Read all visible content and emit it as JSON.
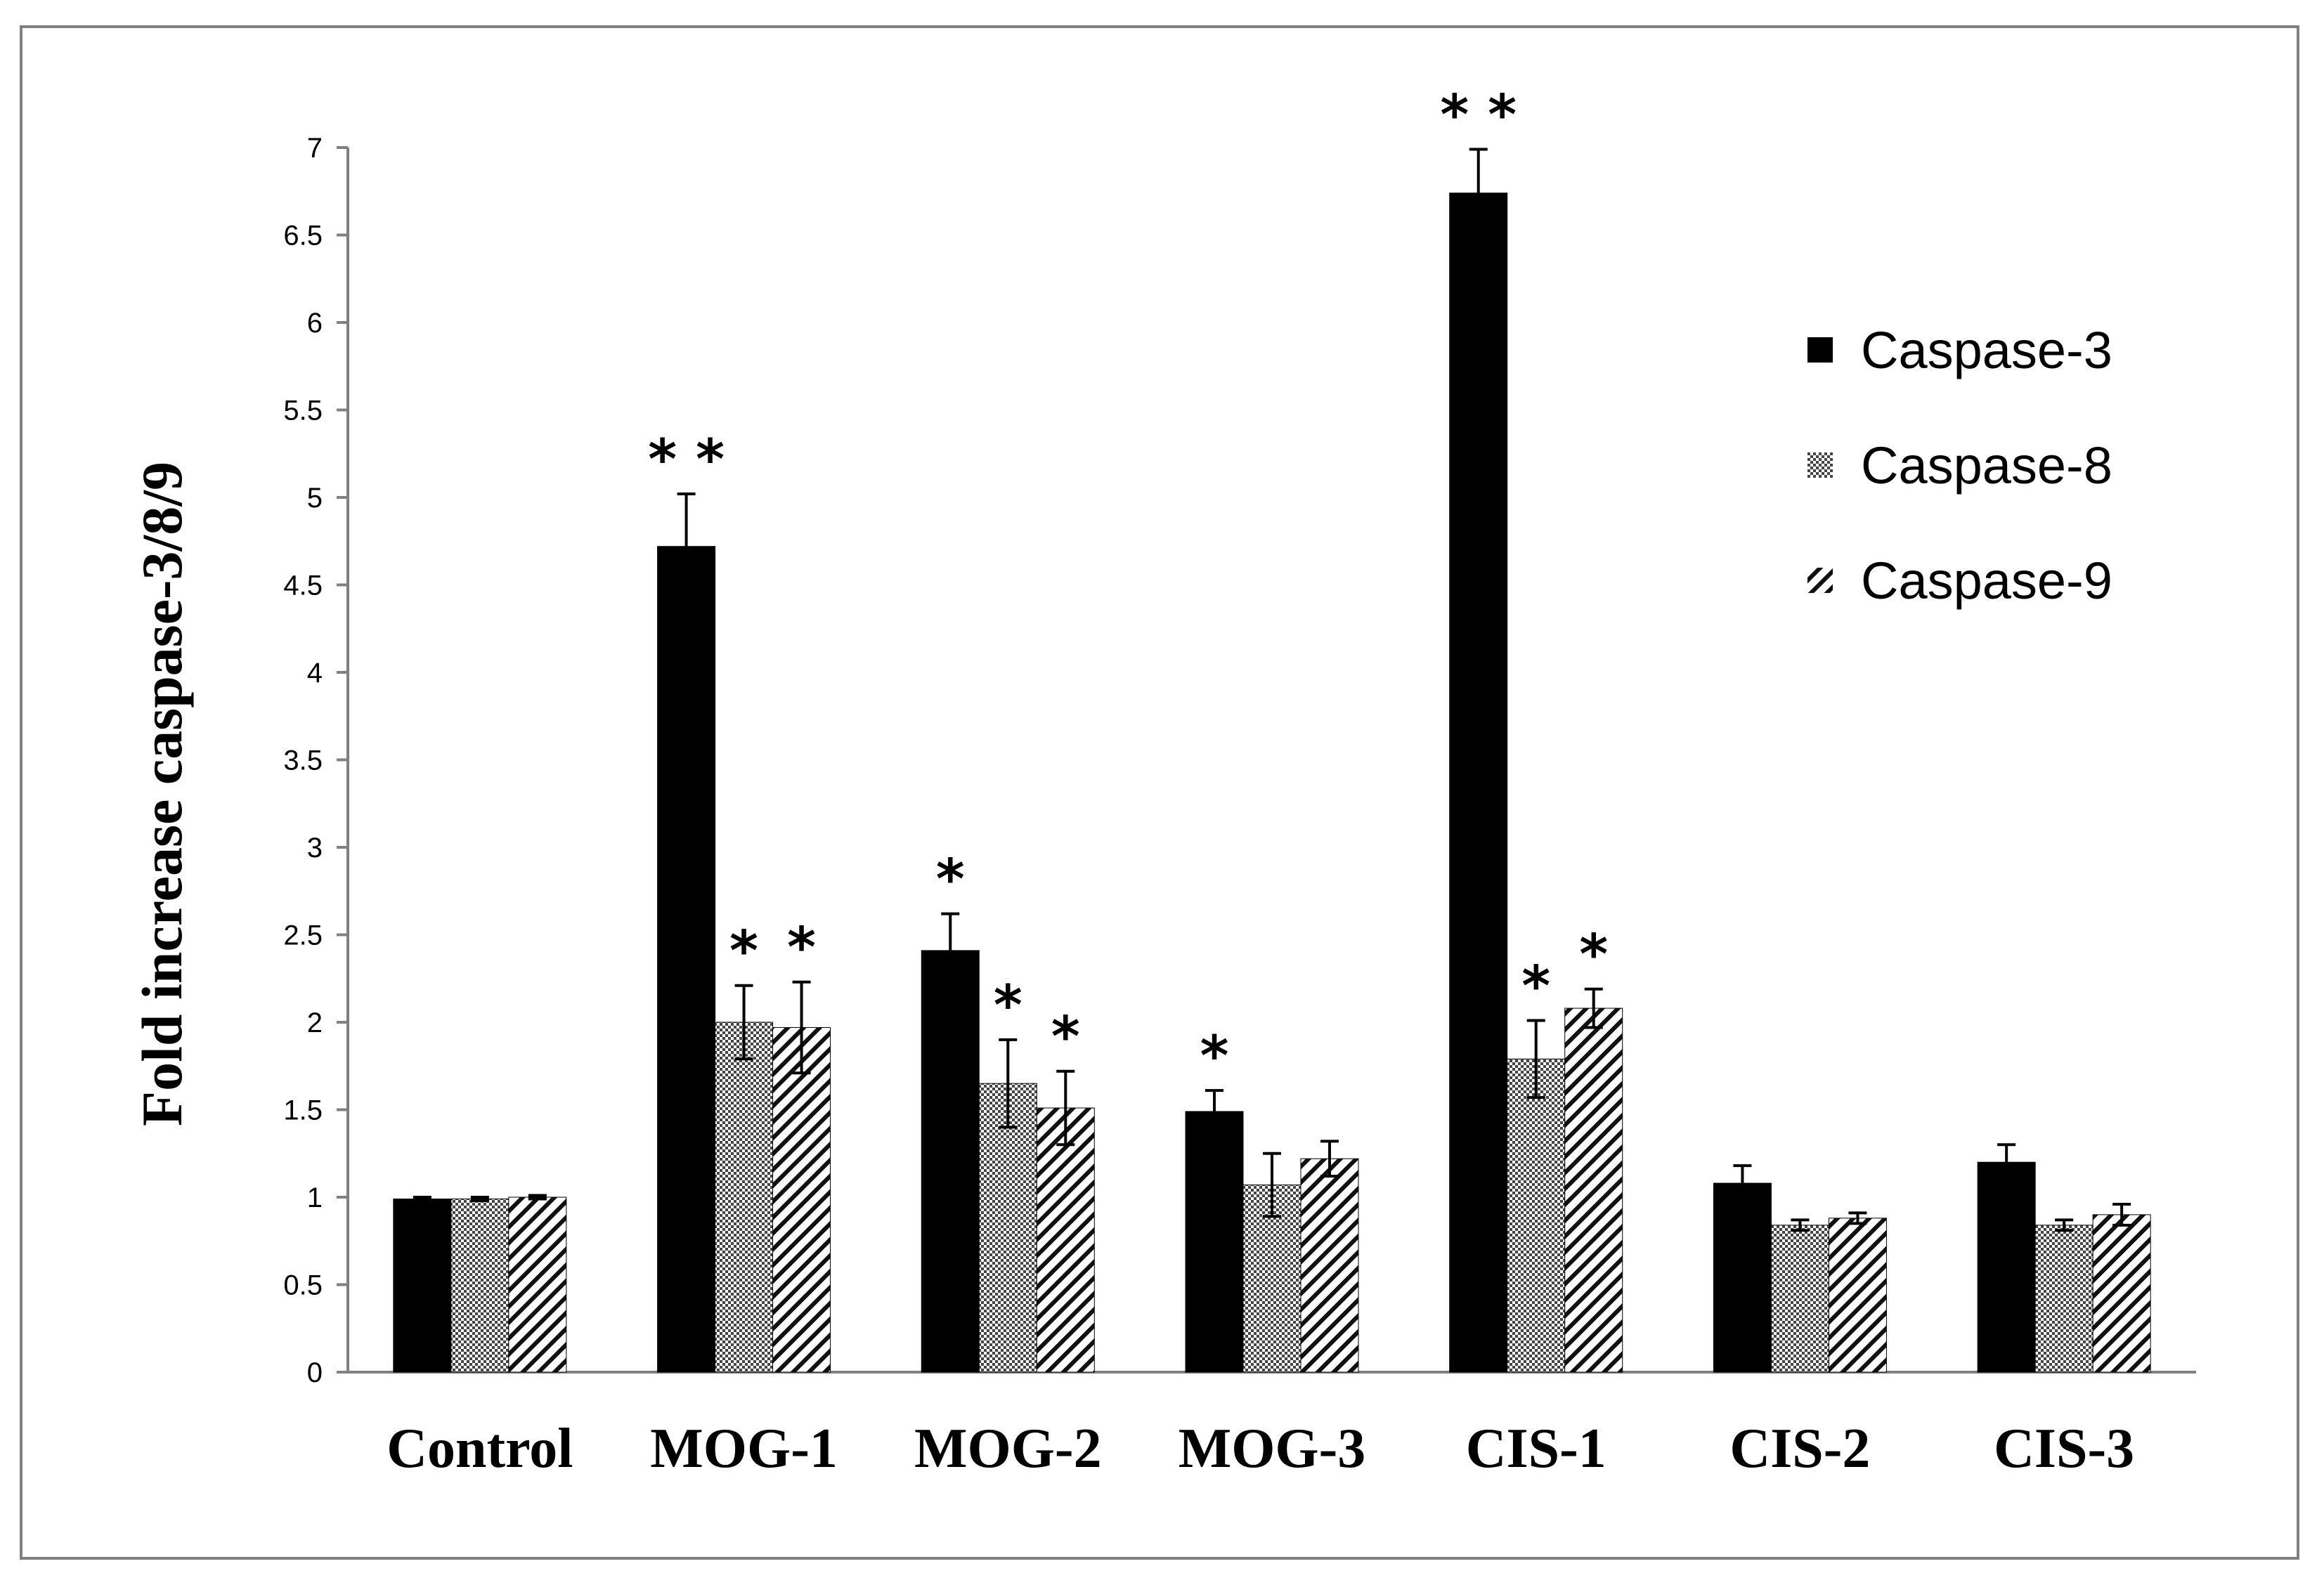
{
  "chart_data": {
    "type": "bar",
    "title": "",
    "xlabel": "",
    "ylabel": "Fold increase caspase-3/8/9",
    "ylim": [
      0,
      7
    ],
    "yticks": [
      0,
      0.5,
      1,
      1.5,
      2,
      2.5,
      3,
      3.5,
      4,
      4.5,
      5,
      5.5,
      6,
      6.5,
      7
    ],
    "ytick_labels": [
      "0",
      "0.5",
      "1",
      "1.5",
      "2",
      "2.5",
      "3",
      "3.5",
      "4",
      "4.5",
      "5",
      "5.5",
      "6",
      "6.5",
      "7"
    ],
    "categories": [
      "Control",
      "MOG-1",
      "MOG-2",
      "MOG-3",
      "CIS-1",
      "CIS-2",
      "CIS-3"
    ],
    "legend_position": "top-right",
    "grid": false,
    "series": [
      {
        "name": "Caspase-3",
        "fill": "solid",
        "color": "#000000",
        "values": [
          0.99,
          4.72,
          2.41,
          1.49,
          6.74,
          1.08,
          1.2
        ],
        "errors": [
          0.01,
          0.3,
          0.21,
          0.12,
          0.25,
          0.1,
          0.1
        ],
        "significance": [
          "",
          "**",
          "*",
          "*",
          "**",
          "",
          ""
        ]
      },
      {
        "name": "Caspase-8",
        "fill": "crosshatch",
        "color": "#555555",
        "values": [
          0.99,
          2.0,
          1.65,
          1.07,
          1.79,
          0.84,
          0.84
        ],
        "errors": [
          0.01,
          0.21,
          0.25,
          0.18,
          0.22,
          0.03,
          0.03
        ],
        "significance": [
          "",
          "*",
          "*",
          "",
          "*",
          "",
          ""
        ]
      },
      {
        "name": "Caspase-9",
        "fill": "diagonal",
        "color": "#000000",
        "values": [
          1.0,
          1.97,
          1.51,
          1.22,
          2.08,
          0.88,
          0.9
        ],
        "errors": [
          0.01,
          0.26,
          0.21,
          0.1,
          0.11,
          0.03,
          0.06
        ],
        "significance": [
          "",
          "*",
          "*",
          "",
          "*",
          "",
          ""
        ]
      }
    ]
  }
}
